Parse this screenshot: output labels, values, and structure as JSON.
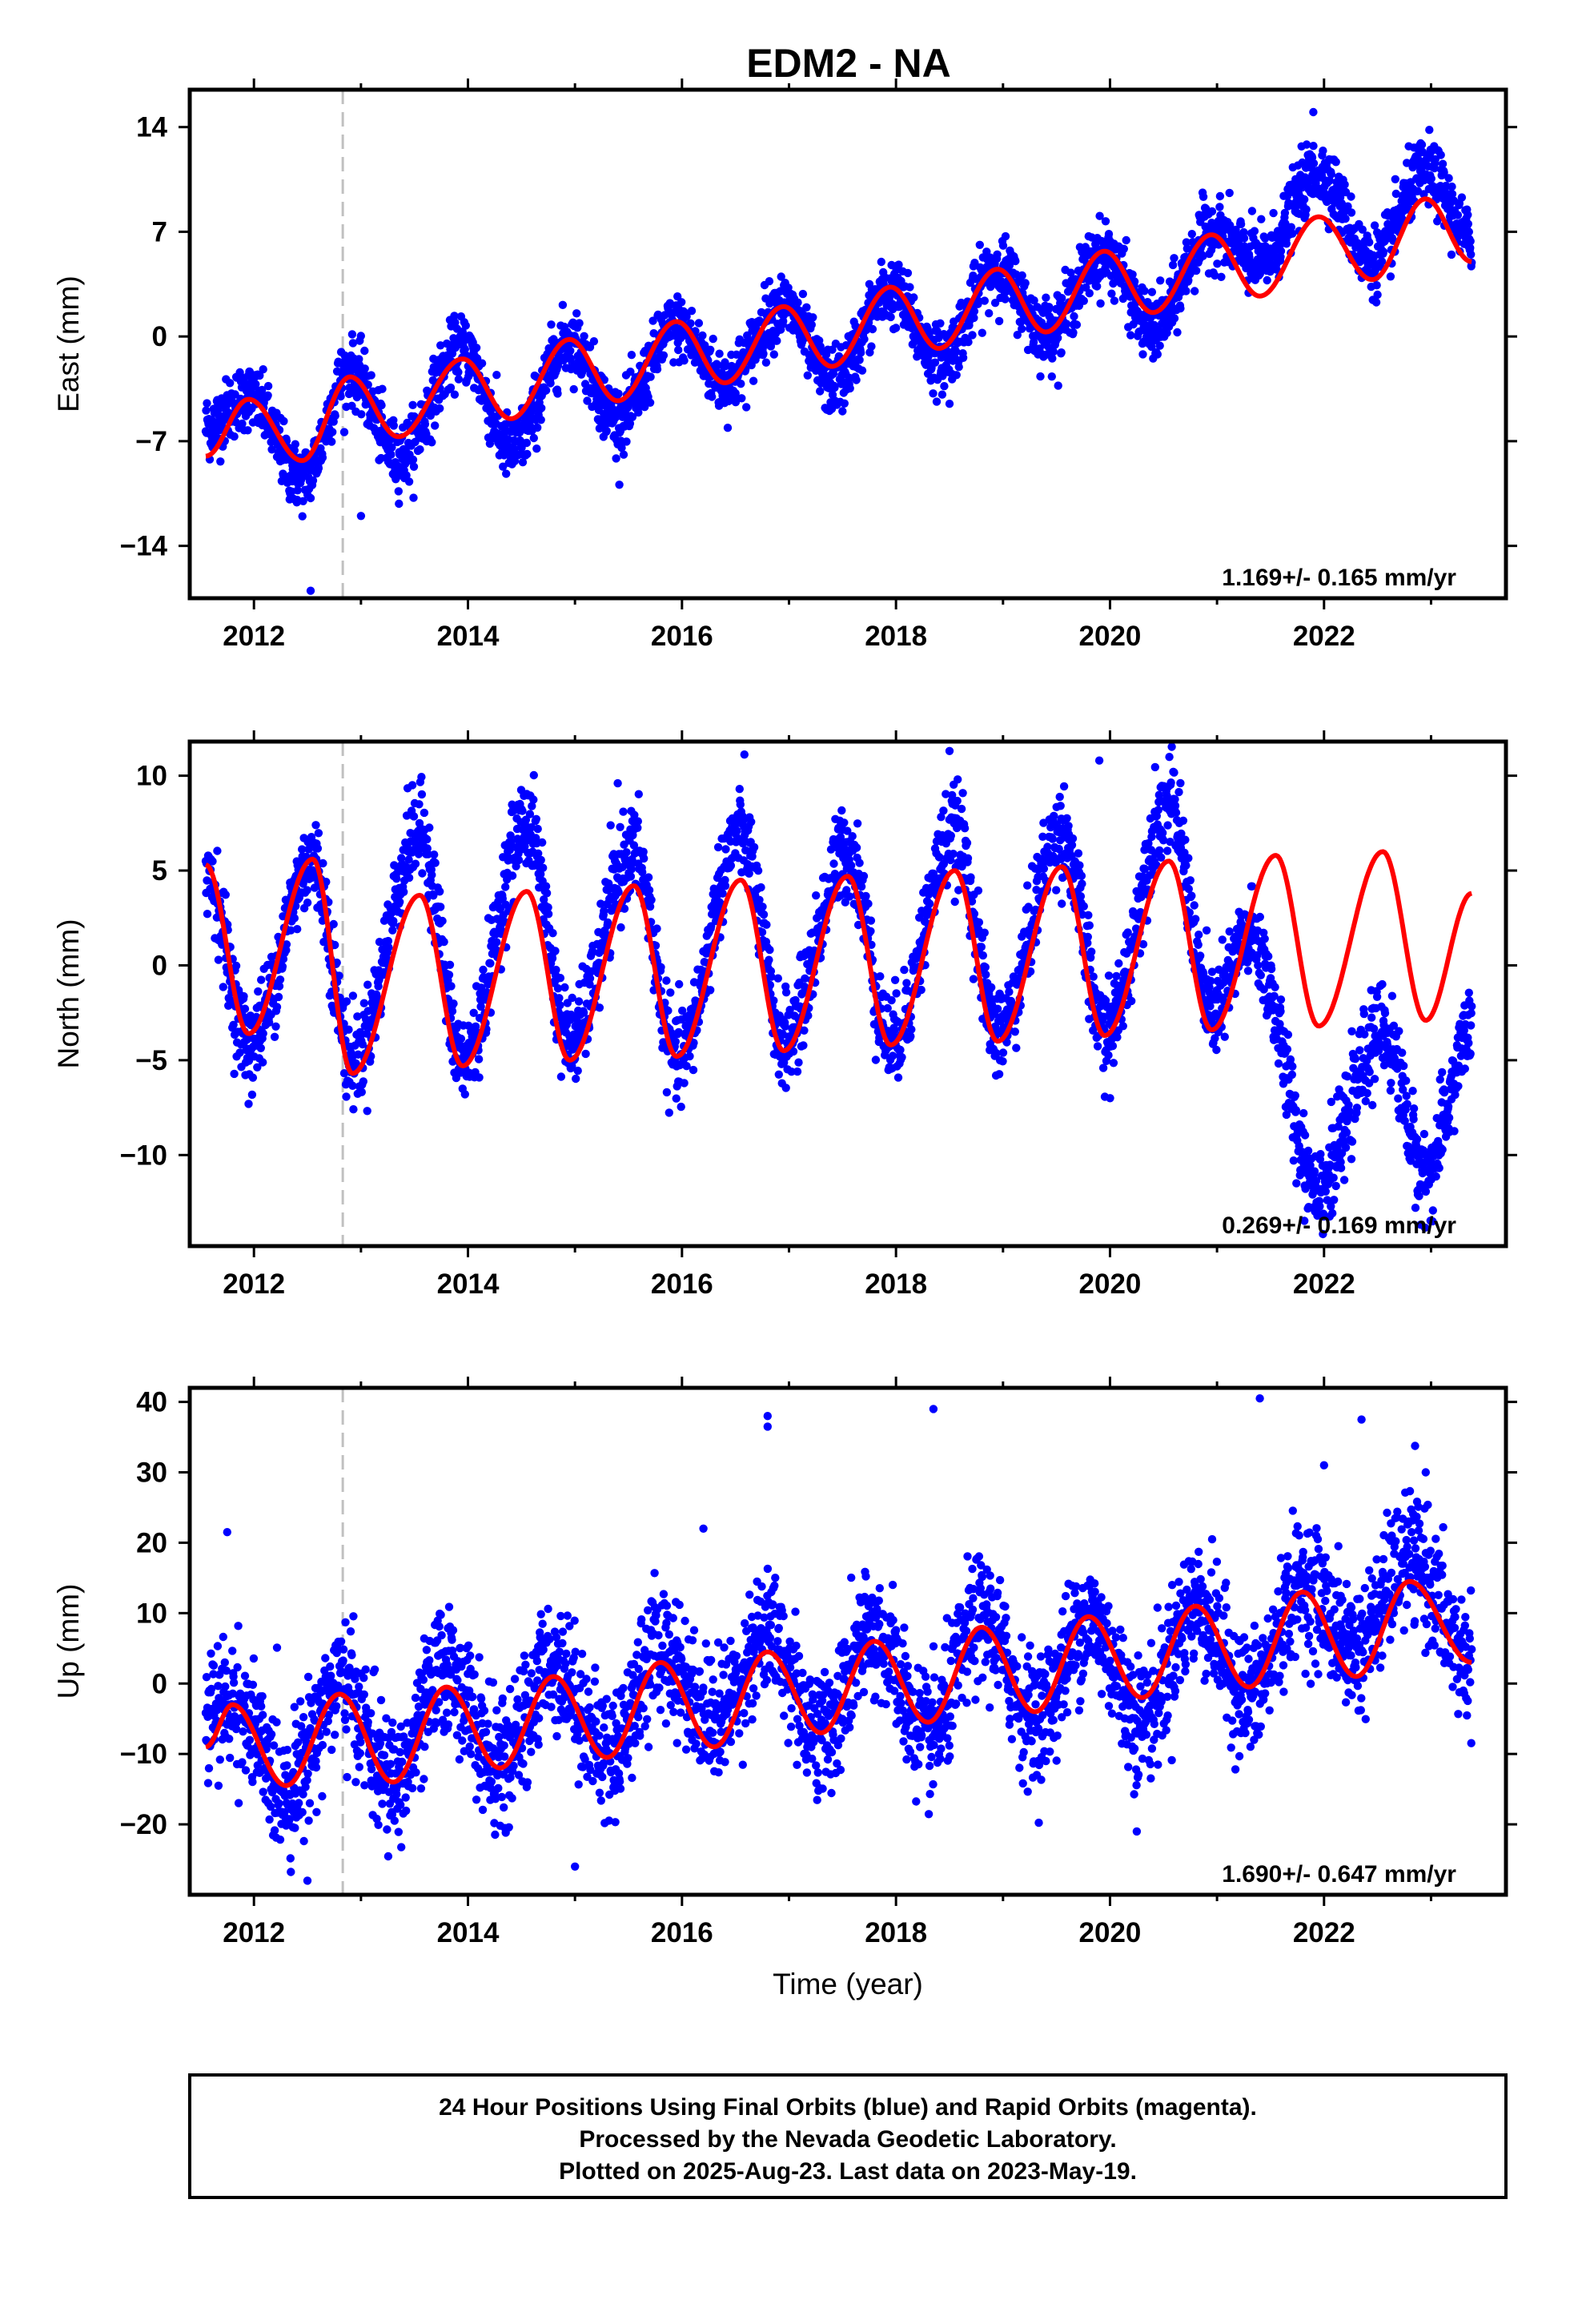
{
  "title": "EDM2 - NA",
  "colors": {
    "data": "#0000ff",
    "model": "#ff0000",
    "dashed": "#c0c0c0",
    "axes": "#000000"
  },
  "chart_data": [
    {
      "type": "scatter",
      "name": "east",
      "ylabel": "East (mm)",
      "xlabel": "",
      "xlim": [
        2011.4,
        2023.7
      ],
      "ylim": [
        -17.5,
        16.5
      ],
      "yticks": [
        14,
        7,
        0,
        -7,
        -14
      ],
      "ytick_labels": [
        "14",
        "7",
        "0",
        "−7",
        "−14"
      ],
      "xticks": [
        2012,
        2014,
        2016,
        2018,
        2020,
        2022
      ],
      "xtick_labels": [
        "2012",
        "2014",
        "2016",
        "2018",
        "2020",
        "2022"
      ],
      "rate_label": "1.169+/- 0.165 mm/yr",
      "equipment_change_year": 2012.83,
      "data_start": 2011.55,
      "data_end": 2023.38,
      "model": {
        "anchor_year": 2011.55,
        "offset": -7.2,
        "slope": 1.169,
        "annual": {
          "amplitude": 1.8,
          "peak_year": 2012.9
        },
        "semiannual": {
          "amplitude": 0.5,
          "peak_year": 2012.75
        }
      },
      "model_keypoints": [
        {
          "x": 2011.55,
          "y": -8.0
        },
        {
          "x": 2011.95,
          "y": -4.2
        },
        {
          "x": 2012.45,
          "y": -8.3
        },
        {
          "x": 2012.9,
          "y": -2.7
        },
        {
          "x": 2013.35,
          "y": -6.7
        },
        {
          "x": 2013.95,
          "y": -1.5
        },
        {
          "x": 2014.4,
          "y": -5.5
        },
        {
          "x": 2014.95,
          "y": -0.2
        },
        {
          "x": 2015.4,
          "y": -4.3
        },
        {
          "x": 2015.95,
          "y": 1.0
        },
        {
          "x": 2016.4,
          "y": -3.1
        },
        {
          "x": 2016.95,
          "y": 2.0
        },
        {
          "x": 2017.4,
          "y": -2.0
        },
        {
          "x": 2017.95,
          "y": 3.3
        },
        {
          "x": 2018.4,
          "y": -0.8
        },
        {
          "x": 2018.95,
          "y": 4.5
        },
        {
          "x": 2019.4,
          "y": 0.3
        },
        {
          "x": 2019.95,
          "y": 5.7
        },
        {
          "x": 2020.4,
          "y": 1.6
        },
        {
          "x": 2020.95,
          "y": 6.8
        },
        {
          "x": 2021.4,
          "y": 2.7
        },
        {
          "x": 2021.95,
          "y": 8.0
        },
        {
          "x": 2022.45,
          "y": 3.8
        },
        {
          "x": 2022.95,
          "y": 9.2
        },
        {
          "x": 2023.38,
          "y": 5.0
        }
      ],
      "data_keypoints": [
        {
          "x": 2011.55,
          "y": -6.0
        },
        {
          "x": 2011.95,
          "y": -4.0
        },
        {
          "x": 2012.45,
          "y": -9.5
        },
        {
          "x": 2012.9,
          "y": -2.3
        },
        {
          "x": 2013.35,
          "y": -8.0
        },
        {
          "x": 2013.95,
          "y": -0.8
        },
        {
          "x": 2014.4,
          "y": -7.5
        },
        {
          "x": 2014.95,
          "y": -0.3
        },
        {
          "x": 2015.4,
          "y": -5.5
        },
        {
          "x": 2015.95,
          "y": 0.6
        },
        {
          "x": 2016.4,
          "y": -3.0
        },
        {
          "x": 2016.95,
          "y": 2.0
        },
        {
          "x": 2017.4,
          "y": -3.0
        },
        {
          "x": 2017.95,
          "y": 3.0
        },
        {
          "x": 2018.4,
          "y": -1.5
        },
        {
          "x": 2018.95,
          "y": 4.5
        },
        {
          "x": 2019.4,
          "y": 0.3
        },
        {
          "x": 2019.95,
          "y": 5.5
        },
        {
          "x": 2020.4,
          "y": 0.5
        },
        {
          "x": 2020.95,
          "y": 7.0
        },
        {
          "x": 2021.4,
          "y": 5.0
        },
        {
          "x": 2021.95,
          "y": 11.0
        },
        {
          "x": 2022.45,
          "y": 5.0
        },
        {
          "x": 2022.95,
          "y": 11.0
        },
        {
          "x": 2023.38,
          "y": 6.5
        }
      ],
      "scatter_sd": 1.1,
      "outliers": [
        {
          "x": 2012.53,
          "y": -17.0
        },
        {
          "x": 2013.0,
          "y": -12.0
        },
        {
          "x": 2017.5,
          "y": -5.0
        },
        {
          "x": 2021.9,
          "y": 15.0
        },
        {
          "x": 2018.5,
          "y": -4.5
        },
        {
          "x": 2016.5,
          "y": -3.8
        }
      ]
    },
    {
      "type": "scatter",
      "name": "north",
      "ylabel": "North (mm)",
      "xlabel": "",
      "xlim": [
        2011.4,
        2023.7
      ],
      "ylim": [
        -14.8,
        11.8
      ],
      "yticks": [
        10,
        5,
        0,
        -5,
        -10
      ],
      "ytick_labels": [
        "10",
        "5",
        "0",
        "−5",
        "−10"
      ],
      "xticks": [
        2012,
        2014,
        2016,
        2018,
        2020,
        2022
      ],
      "xtick_labels": [
        "2012",
        "2014",
        "2016",
        "2018",
        "2020",
        "2022"
      ],
      "rate_label": "0.269+/- 0.169 mm/yr",
      "equipment_change_year": 2012.83,
      "data_start": 2011.55,
      "data_end": 2023.38,
      "model": {
        "anchor_year": 2011.55,
        "offset": 0.4,
        "slope": 0.269,
        "annual": {
          "amplitude": 4.5,
          "peak_year": 2012.52
        },
        "semiannual": {
          "amplitude": 0.8,
          "peak_year": 2012.6
        }
      },
      "model_keypoints": [
        {
          "x": 2011.55,
          "y": 5.3
        },
        {
          "x": 2011.95,
          "y": -3.6
        },
        {
          "x": 2012.55,
          "y": 5.6
        },
        {
          "x": 2012.92,
          "y": -5.7
        },
        {
          "x": 2013.55,
          "y": 3.7
        },
        {
          "x": 2013.95,
          "y": -5.3
        },
        {
          "x": 2014.55,
          "y": 3.9
        },
        {
          "x": 2014.95,
          "y": -5.0
        },
        {
          "x": 2015.55,
          "y": 4.2
        },
        {
          "x": 2015.95,
          "y": -4.8
        },
        {
          "x": 2016.55,
          "y": 4.5
        },
        {
          "x": 2016.95,
          "y": -4.5
        },
        {
          "x": 2017.55,
          "y": 4.7
        },
        {
          "x": 2017.95,
          "y": -4.2
        },
        {
          "x": 2018.55,
          "y": 5.0
        },
        {
          "x": 2018.95,
          "y": -4.0
        },
        {
          "x": 2019.55,
          "y": 5.2
        },
        {
          "x": 2019.95,
          "y": -3.7
        },
        {
          "x": 2020.55,
          "y": 5.5
        },
        {
          "x": 2020.95,
          "y": -3.4
        },
        {
          "x": 2021.55,
          "y": 5.8
        },
        {
          "x": 2021.95,
          "y": -3.2
        },
        {
          "x": 2022.55,
          "y": 6.0
        },
        {
          "x": 2022.95,
          "y": -2.9
        },
        {
          "x": 2023.38,
          "y": 3.8
        }
      ],
      "data_keypoints": [
        {
          "x": 2011.55,
          "y": 5.0
        },
        {
          "x": 2011.95,
          "y": -4.0
        },
        {
          "x": 2012.55,
          "y": 5.5
        },
        {
          "x": 2012.92,
          "y": -5.0
        },
        {
          "x": 2013.55,
          "y": 7.0
        },
        {
          "x": 2013.95,
          "y": -5.0
        },
        {
          "x": 2014.55,
          "y": 7.5
        },
        {
          "x": 2014.95,
          "y": -4.0
        },
        {
          "x": 2015.55,
          "y": 6.0
        },
        {
          "x": 2015.95,
          "y": -5.0
        },
        {
          "x": 2016.55,
          "y": 7.0
        },
        {
          "x": 2016.95,
          "y": -4.0
        },
        {
          "x": 2017.55,
          "y": 6.0
        },
        {
          "x": 2017.95,
          "y": -4.0
        },
        {
          "x": 2018.55,
          "y": 7.0
        },
        {
          "x": 2018.95,
          "y": -3.5
        },
        {
          "x": 2019.55,
          "y": 7.0
        },
        {
          "x": 2019.95,
          "y": -3.5
        },
        {
          "x": 2020.55,
          "y": 8.5
        },
        {
          "x": 2020.95,
          "y": -2.5
        },
        {
          "x": 2021.3,
          "y": 1.5
        },
        {
          "x": 2021.95,
          "y": -11.5
        },
        {
          "x": 2022.55,
          "y": -3.5
        },
        {
          "x": 2022.95,
          "y": -11.0
        },
        {
          "x": 2023.38,
          "y": -3.5
        }
      ],
      "scatter_sd": 1.2,
      "outliers": [
        {
          "x": 2018.5,
          "y": 11.3
        },
        {
          "x": 2019.9,
          "y": 10.8
        },
        {
          "x": 2015.4,
          "y": 9.6
        },
        {
          "x": 2011.95,
          "y": -7.3
        },
        {
          "x": 2013.95,
          "y": -6.5
        },
        {
          "x": 2020.0,
          "y": -7.0
        }
      ]
    },
    {
      "type": "scatter",
      "name": "up",
      "ylabel": "Up (mm)",
      "xlabel": "Time (year)",
      "xlim": [
        2011.4,
        2023.7
      ],
      "ylim": [
        -30.0,
        42.0
      ],
      "yticks": [
        40,
        30,
        20,
        10,
        0,
        -10,
        -20
      ],
      "ytick_labels": [
        "40",
        "30",
        "20",
        "10",
        "0",
        "−10",
        "−20"
      ],
      "xticks": [
        2012,
        2014,
        2016,
        2018,
        2020,
        2022
      ],
      "xtick_labels": [
        "2012",
        "2014",
        "2016",
        "2018",
        "2020",
        "2022"
      ],
      "rate_label": "1.690+/- 0.647 mm/yr",
      "equipment_change_year": 2012.83,
      "data_start": 2011.55,
      "data_end": 2023.38,
      "model": {
        "anchor_year": 2011.55,
        "offset": -10.0,
        "slope": 1.69,
        "annual": {
          "amplitude": 6.0,
          "peak_year": 2012.8
        },
        "semiannual": {
          "amplitude": 0.6,
          "peak_year": 2012.8
        }
      },
      "model_keypoints": [
        {
          "x": 2011.55,
          "y": -9.0
        },
        {
          "x": 2011.8,
          "y": -3.0
        },
        {
          "x": 2012.3,
          "y": -14.5
        },
        {
          "x": 2012.8,
          "y": -1.5
        },
        {
          "x": 2013.3,
          "y": -14.0
        },
        {
          "x": 2013.8,
          "y": -0.5
        },
        {
          "x": 2014.3,
          "y": -12.0
        },
        {
          "x": 2014.8,
          "y": 1.0
        },
        {
          "x": 2015.3,
          "y": -10.5
        },
        {
          "x": 2015.8,
          "y": 3.0
        },
        {
          "x": 2016.3,
          "y": -9.0
        },
        {
          "x": 2016.8,
          "y": 4.5
        },
        {
          "x": 2017.3,
          "y": -7.0
        },
        {
          "x": 2017.8,
          "y": 6.0
        },
        {
          "x": 2018.3,
          "y": -5.5
        },
        {
          "x": 2018.8,
          "y": 8.0
        },
        {
          "x": 2019.3,
          "y": -4.0
        },
        {
          "x": 2019.8,
          "y": 9.5
        },
        {
          "x": 2020.3,
          "y": -2.0
        },
        {
          "x": 2020.8,
          "y": 11.0
        },
        {
          "x": 2021.3,
          "y": -0.5
        },
        {
          "x": 2021.8,
          "y": 13.0
        },
        {
          "x": 2022.3,
          "y": 1.0
        },
        {
          "x": 2022.8,
          "y": 14.5
        },
        {
          "x": 2023.38,
          "y": 3.0
        }
      ],
      "data_keypoints": [
        {
          "x": 2011.55,
          "y": -5.0
        },
        {
          "x": 2011.8,
          "y": -3.0
        },
        {
          "x": 2012.3,
          "y": -15.0
        },
        {
          "x": 2012.8,
          "y": 0.0
        },
        {
          "x": 2013.3,
          "y": -14.0
        },
        {
          "x": 2013.8,
          "y": 2.0
        },
        {
          "x": 2014.3,
          "y": -12.0
        },
        {
          "x": 2014.8,
          "y": 3.0
        },
        {
          "x": 2015.3,
          "y": -10.0
        },
        {
          "x": 2015.8,
          "y": 5.0
        },
        {
          "x": 2016.3,
          "y": -5.0
        },
        {
          "x": 2016.8,
          "y": 7.0
        },
        {
          "x": 2017.3,
          "y": -7.0
        },
        {
          "x": 2017.8,
          "y": 7.0
        },
        {
          "x": 2018.3,
          "y": -8.0
        },
        {
          "x": 2018.8,
          "y": 9.0
        },
        {
          "x": 2019.3,
          "y": -5.0
        },
        {
          "x": 2019.8,
          "y": 9.0
        },
        {
          "x": 2020.3,
          "y": -5.0
        },
        {
          "x": 2020.8,
          "y": 11.0
        },
        {
          "x": 2021.3,
          "y": -2.0
        },
        {
          "x": 2021.8,
          "y": 14.0
        },
        {
          "x": 2022.3,
          "y": 5.0
        },
        {
          "x": 2022.8,
          "y": 18.0
        },
        {
          "x": 2023.38,
          "y": 3.0
        }
      ],
      "scatter_sd": 4.5,
      "outliers": [
        {
          "x": 2016.8,
          "y": 38.0
        },
        {
          "x": 2016.8,
          "y": 36.5
        },
        {
          "x": 2018.35,
          "y": 39.0
        },
        {
          "x": 2021.4,
          "y": 40.5
        },
        {
          "x": 2022.35,
          "y": 37.5
        },
        {
          "x": 2011.75,
          "y": 21.5
        },
        {
          "x": 2012.5,
          "y": -28.0
        },
        {
          "x": 2015.0,
          "y": -26.0
        },
        {
          "x": 2016.2,
          "y": 22.0
        },
        {
          "x": 2022.0,
          "y": 31.0
        },
        {
          "x": 2022.95,
          "y": 30.0
        },
        {
          "x": 2020.25,
          "y": -21.0
        }
      ]
    }
  ],
  "footer": {
    "line1": "24 Hour Positions Using Final Orbits (blue) and Rapid Orbits (magenta).",
    "line2": "Processed by the Nevada Geodetic Laboratory.",
    "line3": "Plotted on 2025-Aug-23. Last data on 2023-May-19."
  }
}
